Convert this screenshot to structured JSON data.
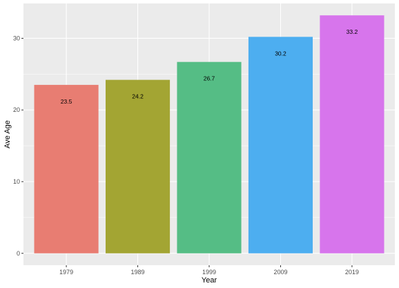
{
  "chart_data": {
    "type": "bar",
    "categories": [
      "1979",
      "1989",
      "1999",
      "2009",
      "2019"
    ],
    "values": [
      23.5,
      24.2,
      26.7,
      30.2,
      33.2
    ],
    "data_labels": [
      "23.5",
      "24.2",
      "26.7",
      "30.2",
      "33.2"
    ],
    "colors": [
      "#e87d72",
      "#a3a533",
      "#55bd85",
      "#4daef0",
      "#d775ec"
    ],
    "title": "",
    "xlabel": "Year",
    "ylabel": "Ave Age",
    "ylim": [
      -1.66,
      34.86
    ],
    "yticks": [
      0,
      10,
      20,
      30
    ],
    "ytick_labels": [
      "0",
      "10",
      "20",
      "30"
    ],
    "grid": true,
    "legend": "none",
    "panel_background": "#ebebeb",
    "grid_color": "#ffffff"
  }
}
